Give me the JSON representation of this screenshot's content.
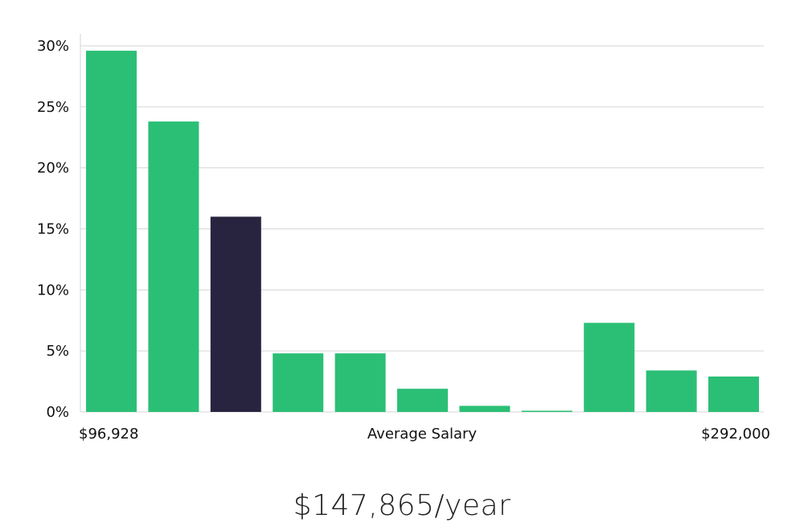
{
  "chart_data": {
    "type": "bar",
    "values": [
      29.6,
      23.8,
      16.0,
      4.8,
      4.8,
      1.9,
      0.5,
      0.1,
      7.3,
      3.4,
      2.9
    ],
    "highlight_index": 2,
    "ylim": [
      0,
      30
    ],
    "y_ticks": [
      0,
      5,
      10,
      15,
      20,
      25,
      30
    ],
    "y_tick_format": "percent",
    "grid": true,
    "colors": {
      "bar": "#2bbf76",
      "highlight": "#28243f",
      "grid": "#d6d6d6"
    }
  },
  "labels": {
    "min_salary": "$96,928",
    "max_salary": "$292,000",
    "axis_label": "Average Salary",
    "average_salary": "$147,865/year"
  }
}
